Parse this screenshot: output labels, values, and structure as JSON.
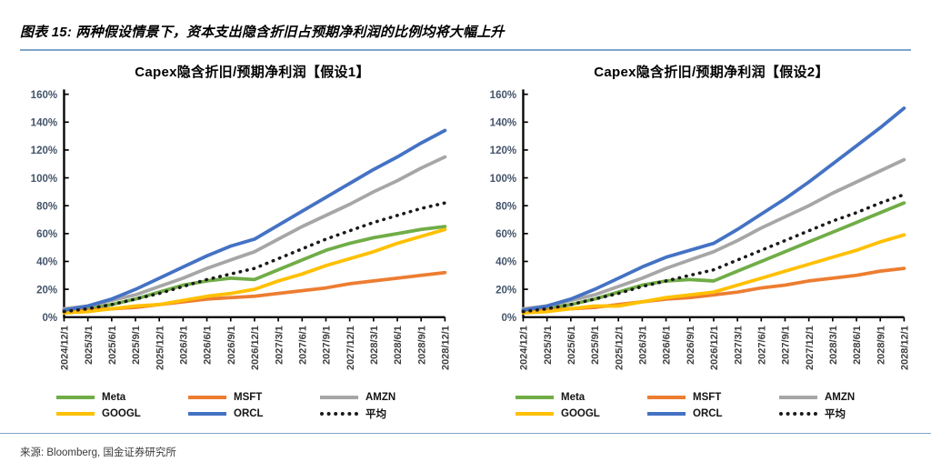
{
  "header": {
    "title": "图表 15: 两种假设情景下，资本支出隐含折旧占预期净利润的比例均将大幅上升"
  },
  "footer": {
    "source": "来源: Bloomberg, 国金证券研究所"
  },
  "colors": {
    "rule": "#7FA6CB",
    "axis": "#000000",
    "y_tick_label": "#44546A",
    "x_tick_label": "#3F3F3F",
    "meta_green": "#70AD47",
    "msft_orange": "#ED7D31",
    "amzn_gray": "#A6A6A6",
    "googl_yellow": "#FFC000",
    "orcl_blue": "#4472C4",
    "average_black": "#1A1A1A"
  },
  "chart_data": [
    {
      "type": "line",
      "title": "Capex隐含折旧/预期净利润【假设1】",
      "xlabel": "",
      "ylabel": "",
      "ylim": [
        0,
        160
      ],
      "ytick_step": 20,
      "ytick_suffix": "%",
      "grid": false,
      "legend_position": "bottom",
      "categories": [
        "2024/12/1",
        "2025/3/1",
        "2025/6/1",
        "2025/9/1",
        "2025/12/1",
        "2026/3/1",
        "2026/6/1",
        "2026/9/1",
        "2026/12/1",
        "2027/3/1",
        "2027/6/1",
        "2027/9/1",
        "2027/12/1",
        "2028/3/1",
        "2028/6/1",
        "2028/9/1",
        "2028/12/1"
      ],
      "series": [
        {
          "name": "Meta",
          "key": "meta",
          "color": "#70AD47",
          "style": "solid",
          "values": [
            4,
            6,
            9,
            13,
            18,
            23,
            26,
            28,
            27,
            34,
            41,
            48,
            53,
            57,
            60,
            63,
            65
          ]
        },
        {
          "name": "MSFT",
          "key": "msft",
          "color": "#ED7D31",
          "style": "solid",
          "values": [
            4,
            5,
            6,
            7,
            9,
            11,
            13,
            14,
            15,
            17,
            19,
            21,
            24,
            26,
            28,
            30,
            32
          ]
        },
        {
          "name": "AMZN",
          "key": "amzn",
          "color": "#A6A6A6",
          "style": "solid",
          "values": [
            6,
            8,
            12,
            16,
            22,
            28,
            35,
            41,
            47,
            56,
            65,
            73,
            81,
            90,
            98,
            107,
            115
          ]
        },
        {
          "name": "GOOGL",
          "key": "googl",
          "color": "#FFC000",
          "style": "solid",
          "values": [
            3,
            4,
            6,
            8,
            9,
            12,
            15,
            17,
            20,
            26,
            31,
            37,
            42,
            47,
            53,
            58,
            63
          ]
        },
        {
          "name": "ORCL",
          "key": "orcl",
          "color": "#4472C4",
          "style": "solid",
          "values": [
            5,
            8,
            13,
            20,
            28,
            36,
            44,
            51,
            56,
            66,
            76,
            86,
            96,
            106,
            115,
            125,
            134
          ]
        },
        {
          "name": "平均",
          "key": "average",
          "color": "#1A1A1A",
          "style": "dotted",
          "values": [
            4,
            6,
            9,
            13,
            17,
            22,
            27,
            31,
            35,
            42,
            49,
            56,
            62,
            68,
            73,
            78,
            82
          ]
        }
      ]
    },
    {
      "type": "line",
      "title": "Capex隐含折旧/预期净利润【假设2】",
      "xlabel": "",
      "ylabel": "",
      "ylim": [
        0,
        160
      ],
      "ytick_step": 20,
      "ytick_suffix": "%",
      "grid": false,
      "legend_position": "bottom",
      "categories": [
        "2024/12/1",
        "2025/3/1",
        "2025/6/1",
        "2025/9/1",
        "2025/12/1",
        "2026/3/1",
        "2026/6/1",
        "2026/9/1",
        "2026/12/1",
        "2027/3/1",
        "2027/6/1",
        "2027/9/1",
        "2027/12/1",
        "2028/3/1",
        "2028/6/1",
        "2028/9/1",
        "2028/12/1"
      ],
      "series": [
        {
          "name": "Meta",
          "key": "meta",
          "color": "#70AD47",
          "style": "solid",
          "values": [
            4,
            6,
            9,
            13,
            18,
            23,
            26,
            27,
            26,
            33,
            40,
            47,
            54,
            61,
            68,
            75,
            82
          ]
        },
        {
          "name": "MSFT",
          "key": "msft",
          "color": "#ED7D31",
          "style": "solid",
          "values": [
            4,
            5,
            6,
            7,
            9,
            11,
            13,
            14,
            16,
            18,
            21,
            23,
            26,
            28,
            30,
            33,
            35
          ]
        },
        {
          "name": "AMZN",
          "key": "amzn",
          "color": "#A6A6A6",
          "style": "solid",
          "values": [
            6,
            8,
            12,
            16,
            22,
            28,
            35,
            41,
            47,
            55,
            64,
            72,
            80,
            89,
            97,
            105,
            113
          ]
        },
        {
          "name": "GOOGL",
          "key": "googl",
          "color": "#FFC000",
          "style": "solid",
          "values": [
            3,
            4,
            6,
            8,
            8,
            11,
            14,
            16,
            18,
            23,
            28,
            33,
            38,
            43,
            48,
            54,
            59
          ]
        },
        {
          "name": "ORCL",
          "key": "orcl",
          "color": "#4472C4",
          "style": "solid",
          "values": [
            5,
            8,
            13,
            20,
            28,
            36,
            43,
            48,
            53,
            63,
            74,
            85,
            97,
            110,
            123,
            136,
            150
          ]
        },
        {
          "name": "平均",
          "key": "average",
          "color": "#1A1A1A",
          "style": "dotted",
          "values": [
            4,
            6,
            9,
            13,
            17,
            22,
            26,
            30,
            34,
            41,
            48,
            55,
            62,
            69,
            75,
            82,
            88
          ]
        }
      ]
    }
  ]
}
